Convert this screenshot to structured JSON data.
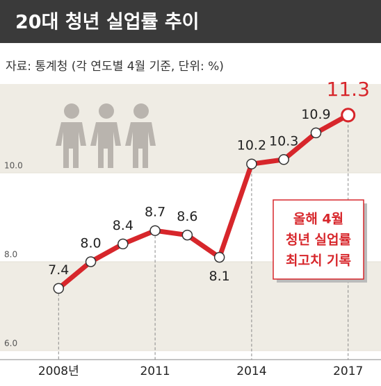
{
  "chart_data": {
    "type": "line",
    "title": "20대 청년 실업률 추이",
    "subtitle": "자료: 통계청 (각 연도별 4월 기준, 단위: %)",
    "annotation": [
      "올해 4월",
      "청년 실업률",
      "최고치 기록"
    ],
    "x": [
      2008,
      2009,
      2010,
      2011,
      2012,
      2013,
      2014,
      2015,
      2016,
      2017
    ],
    "series": [
      {
        "color": "#d7262b",
        "values": [
          7.4,
          8.0,
          8.4,
          8.7,
          8.6,
          8.1,
          10.2,
          10.3,
          10.9,
          11.3
        ],
        "value_labels": [
          "7.4",
          "8.0",
          "8.4",
          "8.7",
          "8.6",
          "8.1",
          "10.2",
          "10.3",
          "10.9",
          "11.3"
        ]
      }
    ],
    "xlim": [
      2007,
      2018
    ],
    "xticks": [
      {
        "value": 2008,
        "label": "2008년"
      },
      2011,
      2014,
      2017
    ],
    "ylim": [
      6,
      12
    ],
    "yticks": [
      {
        "value": 6,
        "label": "6.0"
      },
      {
        "value": 8,
        "label": "8.0"
      },
      {
        "value": 10,
        "label": "10.0"
      }
    ]
  }
}
